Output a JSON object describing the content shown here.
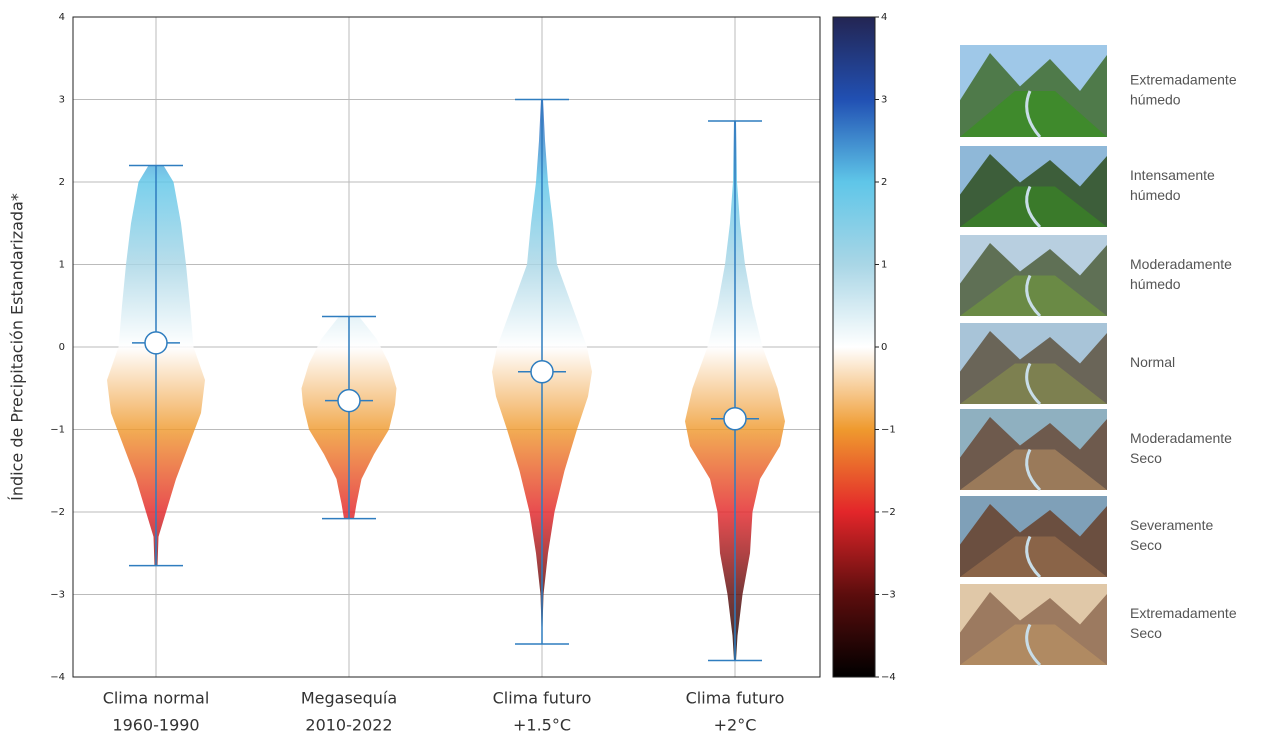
{
  "chart_data": {
    "type": "violin",
    "y_label": "Índice de Precipitación Estandarizada*",
    "categories": [
      [
        "Clima normal",
        "1960-1990"
      ],
      [
        "Megasequía",
        "2010-2022"
      ],
      [
        "Clima futuro",
        "+1.5°C"
      ],
      [
        "Clima futuro",
        "+2°C"
      ]
    ],
    "ylim": [
      -4,
      4
    ],
    "yticks": [
      {
        "value": -4,
        "label": "−4"
      },
      {
        "value": -3,
        "label": "−3"
      },
      {
        "value": -2,
        "label": "−2"
      },
      {
        "value": -1,
        "label": "−1"
      },
      0,
      1,
      2,
      3,
      4
    ],
    "grid": true,
    "line_color": "#2f7dbf",
    "colormap": {
      "values": [
        -4,
        -3,
        -2,
        -1,
        0,
        1,
        2,
        3,
        4
      ],
      "colors": [
        "#000000",
        "#5c0d0d",
        "#e3262a",
        "#ef9a2e",
        "#ffffff",
        "#a9d6e6",
        "#5fc6e8",
        "#2150b3",
        "#232553"
      ]
    },
    "colorbar_ticks": [
      {
        "value": -4,
        "label": "−4"
      },
      {
        "value": -3,
        "label": "−3"
      },
      {
        "value": -2,
        "label": "−2"
      },
      {
        "value": -1,
        "label": "−1"
      },
      0,
      1,
      2,
      3,
      4
    ],
    "series": [
      {
        "min": -2.65,
        "max": 2.2,
        "mean": 0.05,
        "profile_y": [
          2.2,
          2.0,
          1.5,
          1.0,
          0.5,
          0,
          -0.4,
          -0.8,
          -1.2,
          -1.6,
          -2.0,
          -2.3,
          -2.65
        ],
        "profile_w": [
          0.15,
          0.35,
          0.5,
          0.6,
          0.68,
          0.75,
          0.98,
          0.9,
          0.65,
          0.4,
          0.2,
          0.05,
          0.03
        ]
      },
      {
        "min": -2.08,
        "max": 0.37,
        "mean": -0.65,
        "profile_y": [
          0.37,
          0.1,
          -0.2,
          -0.5,
          -0.7,
          -1.0,
          -1.3,
          -1.6,
          -1.9,
          -2.08
        ],
        "profile_w": [
          0.2,
          0.55,
          0.8,
          0.95,
          0.92,
          0.8,
          0.5,
          0.25,
          0.15,
          0.1
        ]
      },
      {
        "min": -3.6,
        "max": 3.0,
        "mean": -0.3,
        "profile_y": [
          3.0,
          2.5,
          2.0,
          1.5,
          1.0,
          0.5,
          0,
          -0.3,
          -0.6,
          -1.0,
          -1.5,
          -2.0,
          -2.5,
          -3.0,
          -3.6
        ],
        "profile_w": [
          0.02,
          0.06,
          0.12,
          0.22,
          0.3,
          0.6,
          0.9,
          1.0,
          0.92,
          0.7,
          0.45,
          0.25,
          0.12,
          0.03,
          0.0
        ]
      },
      {
        "min": -3.8,
        "max": 2.74,
        "mean": -0.87,
        "profile_y": [
          2.74,
          2.0,
          1.5,
          1.0,
          0.5,
          0,
          -0.5,
          -0.9,
          -1.2,
          -1.6,
          -2.0,
          -2.5,
          -3.0,
          -3.5,
          -3.8
        ],
        "profile_w": [
          0.02,
          0.04,
          0.1,
          0.2,
          0.35,
          0.55,
          0.85,
          1.0,
          0.9,
          0.5,
          0.35,
          0.3,
          0.15,
          0.05,
          0.02
        ]
      }
    ]
  },
  "panel": {
    "items": [
      [
        "Extremadamente",
        "húmedo"
      ],
      [
        "Intensamente",
        "húmedo"
      ],
      [
        "Moderadamente",
        "húmedo"
      ],
      [
        "Normal"
      ],
      [
        "Moderadamente",
        "Seco"
      ],
      [
        "Severamente",
        "Seco"
      ],
      [
        "Extremadamente",
        "Seco"
      ]
    ]
  }
}
